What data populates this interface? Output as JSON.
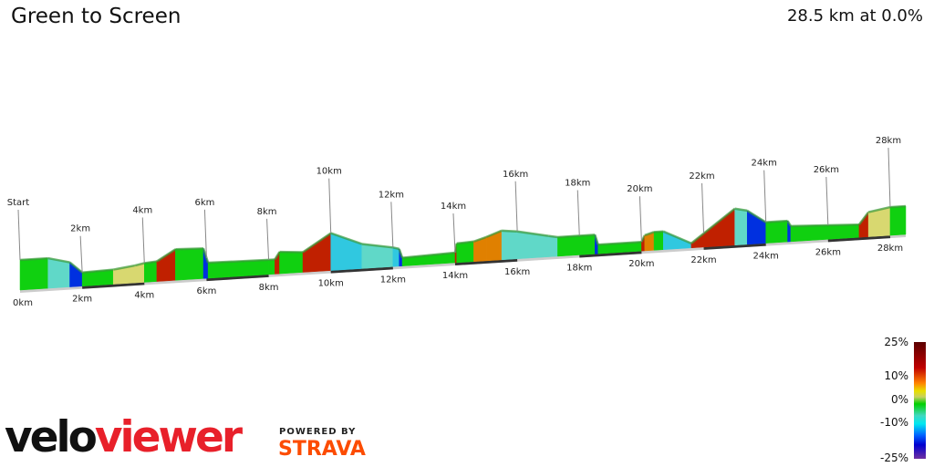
{
  "header": {
    "title": "Green to Screen",
    "summary": "28.5 km at 0.0%"
  },
  "chart_data": {
    "type": "area",
    "title": "Green to Screen",
    "total_distance_km": 28.5,
    "average_gradient": "0.0%",
    "marker_labels": [
      "Start",
      "2km",
      "4km",
      "6km",
      "8km",
      "10km",
      "12km",
      "14km",
      "16km",
      "18km",
      "20km",
      "22km",
      "24km",
      "26km",
      "28km"
    ],
    "axis_tick_labels": [
      "0km",
      "2km",
      "4km",
      "6km",
      "8km",
      "10km",
      "12km",
      "14km",
      "16km",
      "18km",
      "20km",
      "22km",
      "24km",
      "26km",
      "28km"
    ],
    "gradient_scale": {
      "labels": [
        "25%",
        "10%",
        "0%",
        "-10%",
        "-25%"
      ],
      "colors": [
        "#5a0000",
        "#c00000",
        "#ff8000",
        "#e8e000",
        "#00d000",
        "#00e8f0",
        "#0060ff",
        "#0000d0",
        "#7030a0"
      ]
    }
  },
  "branding": {
    "logo_text_a": "velo",
    "logo_text_b": "viewer",
    "powered_by": "POWERED BY",
    "strava": "STRAVA",
    "strava_color": "#fc4c02",
    "logo_red": "#e8202a"
  }
}
